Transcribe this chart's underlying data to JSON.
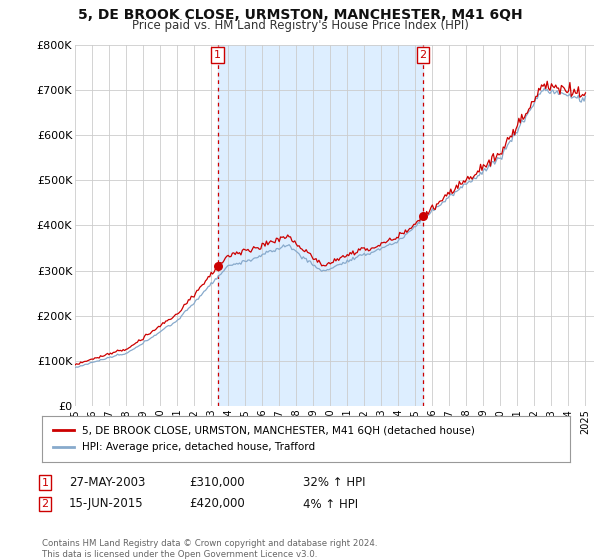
{
  "title": "5, DE BROOK CLOSE, URMSTON, MANCHESTER, M41 6QH",
  "subtitle": "Price paid vs. HM Land Registry's House Price Index (HPI)",
  "red_label": "5, DE BROOK CLOSE, URMSTON, MANCHESTER, M41 6QH (detached house)",
  "blue_label": "HPI: Average price, detached house, Trafford",
  "sale1_date": "27-MAY-2003",
  "sale1_price": 310000,
  "sale1_pct": "32%",
  "sale1_year": 2003.38,
  "sale2_date": "15-JUN-2015",
  "sale2_price": 420000,
  "sale2_pct": "4%",
  "sale2_year": 2015.45,
  "footer": "Contains HM Land Registry data © Crown copyright and database right 2024.\nThis data is licensed under the Open Government Licence v3.0.",
  "red_color": "#cc0000",
  "blue_color": "#88aacc",
  "shade_color": "#ddeeff",
  "bg_color": "#ffffff",
  "grid_color": "#cccccc",
  "ylim": [
    0,
    800000
  ],
  "yticks": [
    0,
    100000,
    200000,
    300000,
    400000,
    500000,
    600000,
    700000,
    800000
  ],
  "ytick_labels": [
    "£0",
    "£100K",
    "£200K",
    "£300K",
    "£400K",
    "£500K",
    "£600K",
    "£700K",
    "£800K"
  ],
  "xlim_start": 1995.0,
  "xlim_end": 2025.5
}
